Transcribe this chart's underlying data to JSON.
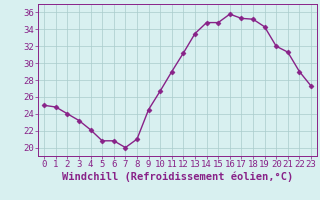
{
  "x": [
    0,
    1,
    2,
    3,
    4,
    5,
    6,
    7,
    8,
    9,
    10,
    11,
    12,
    13,
    14,
    15,
    16,
    17,
    18,
    19,
    20,
    21,
    22,
    23
  ],
  "y": [
    25.0,
    24.8,
    24.0,
    23.2,
    22.1,
    20.8,
    20.8,
    20.0,
    21.0,
    24.5,
    26.7,
    29.0,
    31.2,
    33.5,
    34.8,
    34.8,
    35.8,
    35.3,
    35.2,
    34.3,
    32.0,
    31.3,
    29.0,
    27.3
  ],
  "line_color": "#882288",
  "marker": "D",
  "markersize": 2.5,
  "linewidth": 1.0,
  "xlabel": "Windchill (Refroidissement éolien,°C)",
  "xlim": [
    -0.5,
    23.5
  ],
  "ylim": [
    19,
    37
  ],
  "yticks": [
    20,
    22,
    24,
    26,
    28,
    30,
    32,
    34,
    36
  ],
  "xticks": [
    0,
    1,
    2,
    3,
    4,
    5,
    6,
    7,
    8,
    9,
    10,
    11,
    12,
    13,
    14,
    15,
    16,
    17,
    18,
    19,
    20,
    21,
    22,
    23
  ],
  "background_color": "#d8f0f0",
  "grid_color": "#aacccc",
  "tick_color": "#882288",
  "label_color": "#882288",
  "tick_fontsize": 6.5,
  "xlabel_fontsize": 7.5
}
